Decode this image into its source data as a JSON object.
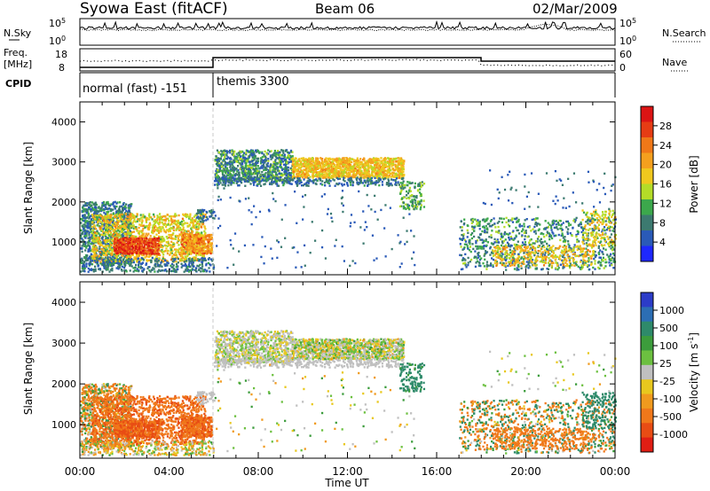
{
  "header": {
    "station": "Syowa East (fitACF)",
    "beam": "Beam 06",
    "date": "02/Mar/2009"
  },
  "panels": {
    "nsky": {
      "label": "N.Sky",
      "tick_hi": "10^5",
      "tick_lo": "10^0"
    },
    "nsearch": {
      "label": "N.Search",
      "tick_hi": "10^5",
      "tick_lo": "10^0"
    },
    "freq": {
      "label_1": "Freq.",
      "label_2": "[MHz]",
      "tick_hi": "18",
      "tick_lo": "8"
    },
    "nave": {
      "label": "Nave",
      "tick_hi": "60",
      "tick_lo": "0"
    },
    "cpid": {
      "label": "CPID",
      "modes": [
        {
          "name": "normal (fast) -151",
          "start_hour": 0,
          "end_hour": 6
        },
        {
          "name": "themis 3300",
          "start_hour": 6,
          "end_hour": 24
        }
      ]
    }
  },
  "axes": {
    "ylabel": "Slant Range [km]",
    "xlabel": "Time UT",
    "yticks": [
      "1000",
      "2000",
      "3000",
      "4000"
    ],
    "xticks": [
      "00:00",
      "04:00",
      "08:00",
      "12:00",
      "16:00",
      "20:00",
      "00:00"
    ]
  },
  "colorbars": {
    "power": {
      "label": "Power [dB]",
      "ticks": [
        "4",
        "8",
        "12",
        "16",
        "20",
        "24",
        "28"
      ],
      "colors": [
        "#1e28ff",
        "#2a5ab8",
        "#3c7a70",
        "#3ca84c",
        "#b4dc28",
        "#f0c81e",
        "#f5a01e",
        "#f07818",
        "#e63c14",
        "#dc1414"
      ]
    },
    "velocity": {
      "label": "Velocity [m s^-1]",
      "ticks": [
        "1000",
        "500",
        "100",
        "25",
        "-25",
        "-100",
        "-500",
        "-1000"
      ],
      "colors": [
        "#2c3cc8",
        "#2c6eb4",
        "#2e8a6a",
        "#3c9c3c",
        "#6cc040",
        "#c0c0c0",
        "#e8c81e",
        "#f09a1e",
        "#f0781a",
        "#e84c14",
        "#e01e14"
      ]
    }
  },
  "chart_data": {
    "type": "heatmap",
    "title": "Syowa East (fitACF)  Beam 06  02/Mar/2009",
    "x_range_hours": [
      0,
      24
    ],
    "y_range_km": [
      180,
      4500
    ],
    "summary_regions": [
      {
        "hours": [
          0,
          5.5
        ],
        "range_km": [
          400,
          1800
        ],
        "power_db": 14,
        "velocity": -200
      },
      {
        "hours": [
          1.5,
          3.5
        ],
        "range_km": [
          700,
          1200
        ],
        "power_db": 26,
        "velocity": -300
      },
      {
        "hours": [
          6,
          9.5
        ],
        "range_km": [
          2500,
          3300
        ],
        "power_db": 10,
        "velocity": 0
      },
      {
        "hours": [
          9.5,
          14.5
        ],
        "range_km": [
          2600,
          3100
        ],
        "power_db": 18,
        "velocity": 0
      },
      {
        "hours": [
          14.5,
          15.5
        ],
        "range_km": [
          1800,
          2500
        ],
        "power_db": 12,
        "velocity": 80
      },
      {
        "hours": [
          17,
          24
        ],
        "range_km": [
          300,
          1600
        ],
        "power_db": 10,
        "velocity": -50
      }
    ]
  }
}
